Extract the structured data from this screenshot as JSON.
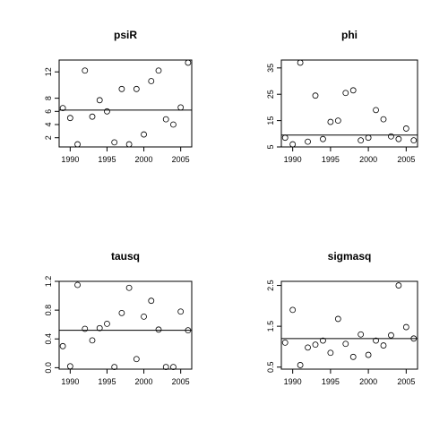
{
  "chart_data": [
    {
      "type": "scatter",
      "title": "psiR",
      "xlabel": "",
      "ylabel": "",
      "xlim": [
        1988.5,
        2006.5
      ],
      "ylim": [
        0.6,
        13.8
      ],
      "xticks": [
        1990,
        1995,
        2000,
        2005
      ],
      "xtick_labels": [
        "1990",
        "1995",
        "2000",
        "2005"
      ],
      "yticks": [
        2,
        4,
        6,
        8,
        12
      ],
      "ytick_labels": [
        "2",
        "4",
        "6",
        "8",
        "12"
      ],
      "x": [
        1989,
        1990,
        1991,
        1992,
        1993,
        1994,
        1995,
        1996,
        1997,
        1998,
        1999,
        2000,
        2001,
        2002,
        2003,
        2004,
        2005,
        2006
      ],
      "y": [
        6.5,
        5.0,
        1.0,
        12.2,
        5.2,
        7.7,
        6.0,
        1.3,
        9.4,
        1.0,
        9.4,
        2.5,
        10.6,
        12.2,
        4.8,
        4.0,
        6.6,
        13.4
      ],
      "hline": 6.2,
      "grid": false
    },
    {
      "type": "scatter",
      "title": "phi",
      "xlabel": "",
      "ylabel": "",
      "xlim": [
        1988.5,
        2006.5
      ],
      "ylim": [
        5,
        38
      ],
      "xticks": [
        1990,
        1995,
        2000,
        2005
      ],
      "xtick_labels": [
        "1990",
        "1995",
        "2000",
        "2005"
      ],
      "yticks": [
        5,
        15,
        25,
        35
      ],
      "ytick_labels": [
        "5",
        "15",
        "25",
        "35"
      ],
      "x": [
        1989,
        1990,
        1991,
        1992,
        1993,
        1994,
        1995,
        1996,
        1997,
        1998,
        1999,
        2000,
        2001,
        2002,
        2003,
        2004,
        2005,
        2006
      ],
      "y": [
        8.5,
        6.0,
        37.0,
        7.0,
        24.5,
        8.0,
        14.5,
        15.0,
        25.5,
        26.5,
        7.5,
        8.5,
        19.0,
        15.5,
        9.0,
        8.0,
        12.0,
        7.5
      ],
      "hline": 9.5,
      "grid": false
    },
    {
      "type": "scatter",
      "title": "tausq",
      "xlabel": "",
      "ylabel": "",
      "xlim": [
        1988.5,
        2006.5
      ],
      "ylim": [
        -0.02,
        1.2
      ],
      "xticks": [
        1990,
        1995,
        2000,
        2005
      ],
      "xtick_labels": [
        "1990",
        "1995",
        "2000",
        "2005"
      ],
      "yticks": [
        0.0,
        0.4,
        0.8,
        1.2
      ],
      "ytick_labels": [
        "0.0",
        "0.4",
        "0.8",
        "1.2"
      ],
      "x": [
        1989,
        1990,
        1991,
        1992,
        1993,
        1994,
        1995,
        1996,
        1997,
        1998,
        1999,
        2000,
        2001,
        2002,
        2003,
        2004,
        2005,
        2006
      ],
      "y": [
        0.3,
        0.02,
        1.15,
        0.54,
        0.38,
        0.55,
        0.61,
        0.01,
        0.76,
        1.11,
        0.12,
        0.71,
        0.93,
        0.53,
        0.01,
        0.01,
        0.78,
        0.52
      ],
      "hline": 0.52,
      "grid": false
    },
    {
      "type": "scatter",
      "title": "sigmasq",
      "xlabel": "",
      "ylabel": "",
      "xlim": [
        1988.5,
        2006.5
      ],
      "ylim": [
        0.45,
        2.6
      ],
      "xticks": [
        1990,
        1995,
        2000,
        2005
      ],
      "xtick_labels": [
        "1990",
        "1995",
        "2000",
        "2005"
      ],
      "yticks": [
        0.5,
        1.5,
        2.5
      ],
      "ytick_labels": [
        "0.5",
        "1.5",
        "2.5"
      ],
      "x": [
        1989,
        1990,
        1991,
        1992,
        1993,
        1994,
        1995,
        1996,
        1997,
        1998,
        1999,
        2000,
        2001,
        2002,
        2003,
        2004,
        2005,
        2006
      ],
      "y": [
        1.1,
        1.9,
        0.55,
        0.98,
        1.05,
        1.15,
        0.85,
        1.68,
        1.07,
        0.75,
        1.3,
        0.8,
        1.15,
        1.03,
        1.28,
        2.5,
        1.48,
        1.2
      ],
      "hline": 1.2,
      "grid": false
    }
  ]
}
